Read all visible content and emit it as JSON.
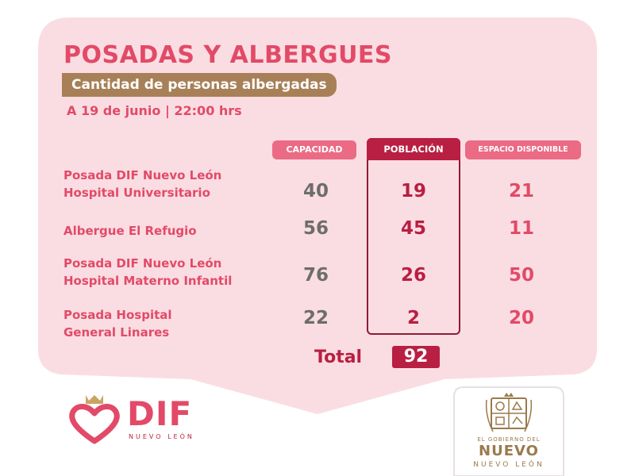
{
  "title": "POSADAS Y ALBERGUES",
  "subtitle": "Cantidad de personas albergadas",
  "date": "A 19 de junio | 22:00 hrs",
  "columns": {
    "capacidad": "CAPACIDAD",
    "poblacion": "POBLACIÓN",
    "espacio": "ESPACIO DISPONIBLE"
  },
  "rows": [
    {
      "name_line1": "Posada DIF Nuevo León",
      "name_line2": "Hospital Universitario",
      "capacidad": "40",
      "poblacion": "19",
      "espacio": "21"
    },
    {
      "name_line1": "Albergue El Refugio",
      "name_line2": "",
      "capacidad": "56",
      "poblacion": "45",
      "espacio": "11"
    },
    {
      "name_line1": "Posada DIF Nuevo León",
      "name_line2": "Hospital Materno Infantil",
      "capacidad": "76",
      "poblacion": "26",
      "espacio": "50"
    },
    {
      "name_line1": "Posada Hospital",
      "name_line2": "General Linares",
      "capacidad": "22",
      "poblacion": "2",
      "espacio": "20"
    }
  ],
  "total": {
    "label": "Total",
    "value": "92"
  },
  "dif_logo": {
    "word": "DIF",
    "sub": "NUEVO LEÓN",
    "icon": "heart-crown-icon"
  },
  "gov_logo": {
    "line1": "EL GOBIERNO DEL",
    "line2": "NUEVO",
    "line3": "NUEVO LEÓN",
    "icon": "coat-of-arms-icon"
  },
  "colors": {
    "card": "#fadde2",
    "accent": "#e24a68",
    "dark_accent": "#b81f42",
    "gold": "#a78058",
    "gray_number": "#6d6d6d"
  }
}
